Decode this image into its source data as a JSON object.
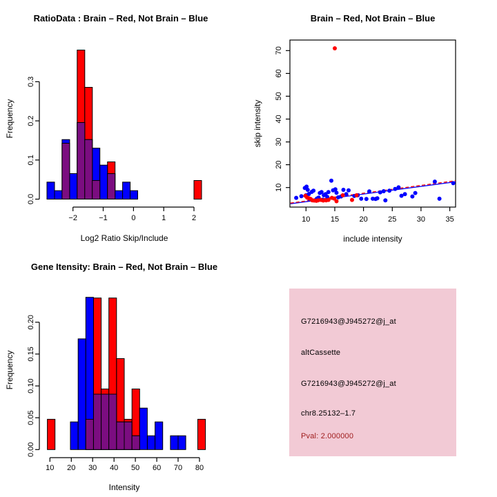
{
  "colors": {
    "red": "#FF0000",
    "blue": "#0000FF",
    "purple": "#7B0D80",
    "pink_box": "#F2CAD5",
    "pval_red": "#9E1A1A",
    "axis": "#000000",
    "background": "#FFFFFF"
  },
  "info": {
    "probe_id": "G7216943@J945272@j_at",
    "splice_type": "altCassette",
    "probe_id_2": "G7216943@J945272@j_at",
    "location": "chr8.25132–1.7",
    "pval": "Pval: 2.000000"
  },
  "chart_data": [
    {
      "id": "ratio-histogram",
      "type": "histogram",
      "title": "RatioData : Brain – Red, Not Brain – Blue",
      "xlabel": "Log2 Ratio Skip/Include",
      "ylabel": "Frequency",
      "xlim": [
        -2.95,
        2.45
      ],
      "ylim": [
        0,
        0.4
      ],
      "xticks": [
        -2,
        -1,
        0,
        1,
        2
      ],
      "xtick_labels": [
        "−2",
        "−1",
        "0",
        "1",
        "2"
      ],
      "yticks": [
        0.0,
        0.1,
        0.2,
        0.3
      ],
      "ytick_labels": [
        "0.0",
        "0.1",
        "0.2",
        "0.3"
      ],
      "bars": {
        "blue": [
          [
            -2.86,
            -2.61,
            0.0435
          ],
          [
            -2.61,
            -2.36,
            0.0217
          ],
          [
            -2.36,
            -2.11,
            0.1522
          ],
          [
            -2.11,
            -1.86,
            0.0652
          ],
          [
            -1.86,
            -1.61,
            0.1957
          ],
          [
            -1.61,
            -1.36,
            0.1522
          ],
          [
            -1.36,
            -1.11,
            0.1304
          ],
          [
            -1.11,
            -0.86,
            0.087
          ],
          [
            -0.86,
            -0.61,
            0.0652
          ],
          [
            -0.61,
            -0.36,
            0.0217
          ],
          [
            -0.36,
            -0.11,
            0.0435
          ],
          [
            -0.11,
            0.14,
            0.0217
          ]
        ],
        "red": [
          [
            -2.36,
            -2.11,
            0.1429
          ],
          [
            -1.86,
            -1.61,
            0.381
          ],
          [
            -1.61,
            -1.36,
            0.2857
          ],
          [
            -1.36,
            -1.11,
            0.0476
          ],
          [
            -0.86,
            -0.61,
            0.0952
          ],
          [
            2.0,
            2.25,
            0.0476
          ]
        ],
        "overlap": [
          [
            -2.36,
            -2.11,
            0.1429
          ],
          [
            -1.86,
            -1.61,
            0.1957
          ],
          [
            -1.61,
            -1.36,
            0.1522
          ],
          [
            -1.36,
            -1.11,
            0.0476
          ],
          [
            -0.86,
            -0.61,
            0.0652
          ]
        ]
      }
    },
    {
      "id": "intensity-scatter",
      "type": "scatter",
      "title": "Brain – Red, Not Brain – Blue",
      "xlabel": "include intensity",
      "ylabel": "skip intensity",
      "xlim": [
        7.2,
        36.0
      ],
      "ylim": [
        1.5,
        74.5
      ],
      "xticks": [
        10,
        15,
        20,
        25,
        30,
        35
      ],
      "xtick_labels": [
        "10",
        "15",
        "20",
        "25",
        "30",
        "35"
      ],
      "yticks": [
        10,
        20,
        30,
        40,
        50,
        60,
        70
      ],
      "ytick_labels": [
        "10",
        "20",
        "30",
        "40",
        "50",
        "60",
        "70"
      ],
      "points": {
        "blue": [
          [
            8.3,
            5.5
          ],
          [
            9.2,
            6.2
          ],
          [
            9.8,
            9.8
          ],
          [
            10.1,
            10.4
          ],
          [
            10.3,
            9.0
          ],
          [
            10.0,
            6.6
          ],
          [
            10.5,
            7.2
          ],
          [
            10.6,
            4.8
          ],
          [
            11.0,
            8.1
          ],
          [
            11.3,
            8.6
          ],
          [
            11.5,
            4.4
          ],
          [
            11.9,
            5.2
          ],
          [
            12.2,
            5.6
          ],
          [
            12.4,
            7.6
          ],
          [
            12.7,
            8.0
          ],
          [
            12.9,
            4.7
          ],
          [
            13.1,
            6.6
          ],
          [
            13.4,
            7.1
          ],
          [
            13.7,
            5.9
          ],
          [
            13.9,
            8.0
          ],
          [
            14.4,
            13.0
          ],
          [
            14.7,
            8.8
          ],
          [
            15.1,
            9.2
          ],
          [
            15.3,
            7.7
          ],
          [
            15.6,
            5.7
          ],
          [
            16.1,
            6.1
          ],
          [
            16.5,
            9.0
          ],
          [
            17.0,
            7.1
          ],
          [
            17.4,
            8.8
          ],
          [
            18.4,
            6.3
          ],
          [
            19.0,
            6.6
          ],
          [
            19.6,
            5.1
          ],
          [
            20.5,
            5.0
          ],
          [
            21.0,
            8.3
          ],
          [
            21.6,
            5.1
          ],
          [
            22.1,
            5.0
          ],
          [
            22.4,
            5.3
          ],
          [
            22.9,
            7.9
          ],
          [
            23.5,
            8.4
          ],
          [
            23.8,
            4.4
          ],
          [
            24.5,
            8.6
          ],
          [
            25.5,
            9.4
          ],
          [
            26.1,
            10.1
          ],
          [
            26.6,
            6.4
          ],
          [
            27.2,
            7.1
          ],
          [
            28.5,
            6.1
          ],
          [
            29.0,
            7.6
          ],
          [
            32.4,
            12.6
          ],
          [
            33.2,
            5.1
          ],
          [
            35.6,
            11.9
          ]
        ],
        "red": [
          [
            15.0,
            71.0
          ],
          [
            9.9,
            6.4
          ],
          [
            10.2,
            5.6
          ],
          [
            10.5,
            5.3
          ],
          [
            10.8,
            5.0
          ],
          [
            11.1,
            4.4
          ],
          [
            11.4,
            4.3
          ],
          [
            11.8,
            4.2
          ],
          [
            12.1,
            4.4
          ],
          [
            12.6,
            4.6
          ],
          [
            13.0,
            4.3
          ],
          [
            13.5,
            4.4
          ],
          [
            13.9,
            4.6
          ],
          [
            14.5,
            5.5
          ],
          [
            14.9,
            5.2
          ],
          [
            15.3,
            4.0
          ],
          [
            16.4,
            6.6
          ],
          [
            18.0,
            4.6
          ],
          [
            18.8,
            6.6
          ]
        ]
      },
      "lines": {
        "blue": [
          [
            7.3,
            2.9
          ],
          [
            36.0,
            12.5
          ]
        ],
        "red": [
          [
            7.3,
            3.2
          ],
          [
            36.0,
            13.0
          ]
        ]
      }
    },
    {
      "id": "gene-histogram",
      "type": "histogram",
      "title": "Gene Itensity: Brain – Red, Not Brain – Blue",
      "xlabel": "Intensity",
      "ylabel": "Frequency",
      "xlim": [
        8,
        84
      ],
      "ylim": [
        0,
        0.245
      ],
      "xticks": [
        10,
        20,
        30,
        40,
        50,
        60,
        70,
        80
      ],
      "xtick_labels": [
        "10",
        "20",
        "30",
        "40",
        "50",
        "60",
        "70",
        "80"
      ],
      "yticks": [
        0.0,
        0.05,
        0.1,
        0.15,
        0.2
      ],
      "ytick_labels": [
        "0.00",
        "0.05",
        "0.10",
        "0.15",
        "0.20"
      ],
      "bars": {
        "blue": [
          [
            19.6,
            23.2,
            0.0435
          ],
          [
            23.2,
            26.8,
            0.1739
          ],
          [
            26.8,
            30.4,
            0.2391
          ],
          [
            30.4,
            34.0,
            0.087
          ],
          [
            34.0,
            37.6,
            0.087
          ],
          [
            37.6,
            41.2,
            0.087
          ],
          [
            41.2,
            44.8,
            0.0435
          ],
          [
            44.8,
            48.4,
            0.0435
          ],
          [
            48.4,
            52.0,
            0.0217
          ],
          [
            52.0,
            55.6,
            0.0652
          ],
          [
            55.6,
            59.2,
            0.0217
          ],
          [
            59.2,
            62.8,
            0.0435
          ],
          [
            66.4,
            70.0,
            0.0217
          ],
          [
            70.0,
            73.6,
            0.0217
          ]
        ],
        "red": [
          [
            8.8,
            12.4,
            0.0476
          ],
          [
            26.8,
            30.4,
            0.0476
          ],
          [
            30.4,
            34.0,
            0.2381
          ],
          [
            34.0,
            37.6,
            0.0952
          ],
          [
            37.6,
            41.2,
            0.2381
          ],
          [
            41.2,
            44.8,
            0.1429
          ],
          [
            44.8,
            48.4,
            0.0476
          ],
          [
            48.4,
            52.0,
            0.0952
          ],
          [
            79.2,
            82.8,
            0.0476
          ]
        ],
        "overlap": [
          [
            26.8,
            30.4,
            0.0476
          ],
          [
            30.4,
            34.0,
            0.087
          ],
          [
            34.0,
            37.6,
            0.087
          ],
          [
            37.6,
            41.2,
            0.087
          ],
          [
            41.2,
            44.8,
            0.0435
          ],
          [
            44.8,
            48.4,
            0.0435
          ],
          [
            48.4,
            52.0,
            0.0217
          ]
        ]
      }
    },
    {
      "id": "info-panel",
      "type": "info",
      "lines": [
        "G7216943@J945272@j_at",
        "altCassette",
        "G7216943@J945272@j_at",
        "chr8.25132–1.7",
        "Pval: 2.000000"
      ]
    }
  ]
}
